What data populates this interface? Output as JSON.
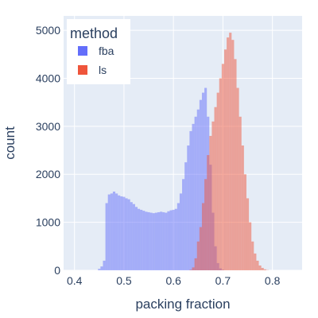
{
  "chart_data": {
    "type": "histogram",
    "title": "",
    "xlabel": "packing fraction",
    "ylabel": "count",
    "xlim": [
      0.378,
      0.86
    ],
    "ylim": [
      0,
      5300
    ],
    "x_ticks": [
      {
        "value": 0.4,
        "label": "0.4"
      },
      {
        "value": 0.5,
        "label": "0.5"
      },
      {
        "value": 0.6,
        "label": "0.6"
      },
      {
        "value": 0.7,
        "label": "0.7"
      },
      {
        "value": 0.8,
        "label": "0.8"
      }
    ],
    "y_ticks": [
      {
        "value": 0,
        "label": "0"
      },
      {
        "value": 1000,
        "label": "1000"
      },
      {
        "value": 2000,
        "label": "2000"
      },
      {
        "value": 3000,
        "label": "3000"
      },
      {
        "value": 4000,
        "label": "4000"
      },
      {
        "value": 5000,
        "label": "5000"
      }
    ],
    "grid": true,
    "barmode": "overlay",
    "legend": {
      "title": "method",
      "position": "top-left"
    },
    "series": [
      {
        "name": "fba",
        "color": "#636efa",
        "opacity": 0.5,
        "x": [
          0.45,
          0.455,
          0.46,
          0.465,
          0.47,
          0.475,
          0.48,
          0.485,
          0.49,
          0.495,
          0.5,
          0.505,
          0.51,
          0.515,
          0.52,
          0.525,
          0.53,
          0.535,
          0.54,
          0.545,
          0.55,
          0.555,
          0.56,
          0.565,
          0.57,
          0.575,
          0.58,
          0.585,
          0.59,
          0.595,
          0.6,
          0.605,
          0.61,
          0.615,
          0.62,
          0.625,
          0.63,
          0.635,
          0.64,
          0.645,
          0.65,
          0.655,
          0.66,
          0.665,
          0.67,
          0.675,
          0.68,
          0.685,
          0.69,
          0.695,
          0.7
        ],
        "y": [
          30,
          80,
          200,
          1400,
          1580,
          1600,
          1640,
          1600,
          1560,
          1540,
          1530,
          1500,
          1480,
          1420,
          1380,
          1320,
          1280,
          1260,
          1240,
          1220,
          1210,
          1200,
          1190,
          1200,
          1210,
          1220,
          1210,
          1200,
          1230,
          1250,
          1260,
          1280,
          1400,
          1600,
          1900,
          2250,
          2600,
          2900,
          3050,
          3200,
          3350,
          3550,
          3700,
          3800,
          3200,
          2200,
          1200,
          500,
          150,
          40,
          10
        ]
      },
      {
        "name": "ls",
        "color": "#ef553b",
        "opacity": 0.5,
        "x": [
          0.635,
          0.64,
          0.645,
          0.65,
          0.655,
          0.66,
          0.665,
          0.67,
          0.675,
          0.68,
          0.685,
          0.69,
          0.695,
          0.7,
          0.705,
          0.71,
          0.715,
          0.72,
          0.725,
          0.73,
          0.735,
          0.74,
          0.745,
          0.75,
          0.755,
          0.76,
          0.765,
          0.77,
          0.775,
          0.78,
          0.785,
          0.79
        ],
        "y": [
          10,
          60,
          250,
          600,
          900,
          1400,
          1900,
          2400,
          2800,
          3100,
          3400,
          3700,
          4000,
          4300,
          4600,
          4850,
          4950,
          4800,
          4400,
          3800,
          3200,
          2600,
          2000,
          1500,
          1000,
          600,
          350,
          200,
          100,
          50,
          20,
          5
        ]
      }
    ]
  }
}
